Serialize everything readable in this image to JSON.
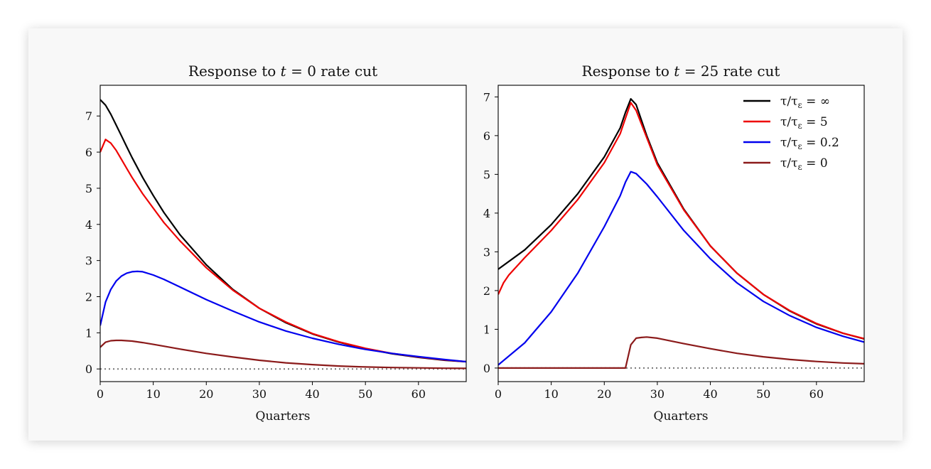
{
  "chart_data": [
    {
      "type": "line",
      "title_prefix": "Response to ",
      "title_var": "t",
      "title_suffix": " = 0 rate cut",
      "xlabel": "Quarters",
      "ylabel": "",
      "xlim": [
        0,
        69
      ],
      "ylim": [
        -0.35,
        7.85
      ],
      "xticks": [
        0,
        10,
        20,
        30,
        40,
        50,
        60
      ],
      "yticks": [
        0,
        1,
        2,
        3,
        4,
        5,
        6,
        7
      ],
      "reference_line": {
        "y": 0,
        "style": "dotted",
        "color": "#777777"
      },
      "series": [
        {
          "color": "#000000",
          "x": [
            0,
            1,
            2,
            3,
            4,
            5,
            6,
            8,
            10,
            12,
            15,
            20,
            25,
            30,
            35,
            40,
            45,
            50,
            55,
            60,
            65,
            69
          ],
          "y": [
            7.45,
            7.3,
            7.05,
            6.75,
            6.45,
            6.15,
            5.85,
            5.3,
            4.8,
            4.33,
            3.72,
            2.88,
            2.2,
            1.68,
            1.28,
            0.97,
            0.74,
            0.56,
            0.42,
            0.32,
            0.24,
            0.2
          ]
        },
        {
          "color": "#ee0000",
          "x": [
            0,
            1,
            2,
            3,
            4,
            5,
            6,
            8,
            10,
            12,
            15,
            20,
            25,
            30,
            35,
            40,
            45,
            50,
            55,
            60,
            65,
            69
          ],
          "y": [
            6.0,
            6.35,
            6.25,
            6.05,
            5.8,
            5.55,
            5.3,
            4.85,
            4.45,
            4.05,
            3.55,
            2.8,
            2.18,
            1.68,
            1.3,
            0.98,
            0.75,
            0.57,
            0.43,
            0.33,
            0.25,
            0.2
          ]
        },
        {
          "color": "#0000ee",
          "x": [
            0,
            1,
            2,
            3,
            4,
            5,
            6,
            7,
            8,
            10,
            12,
            15,
            20,
            25,
            30,
            35,
            40,
            45,
            50,
            55,
            60,
            65,
            69
          ],
          "y": [
            1.2,
            1.85,
            2.2,
            2.43,
            2.57,
            2.65,
            2.69,
            2.7,
            2.69,
            2.6,
            2.48,
            2.27,
            1.92,
            1.6,
            1.3,
            1.05,
            0.85,
            0.68,
            0.54,
            0.43,
            0.34,
            0.26,
            0.2
          ]
        },
        {
          "color": "#8b1a1a",
          "x": [
            0,
            1,
            2,
            3,
            4,
            5,
            6,
            8,
            10,
            12,
            15,
            20,
            25,
            30,
            35,
            40,
            45,
            50,
            55,
            60,
            65,
            69
          ],
          "y": [
            0.6,
            0.74,
            0.78,
            0.79,
            0.79,
            0.78,
            0.77,
            0.73,
            0.68,
            0.63,
            0.55,
            0.43,
            0.33,
            0.24,
            0.17,
            0.12,
            0.08,
            0.055,
            0.04,
            0.03,
            0.02,
            0.015
          ]
        }
      ]
    },
    {
      "type": "line",
      "title_prefix": "Response to ",
      "title_var": "t",
      "title_suffix": " = 25 rate cut",
      "xlabel": "Quarters",
      "ylabel": "",
      "xlim": [
        0,
        69
      ],
      "ylim": [
        -0.35,
        7.3
      ],
      "xticks": [
        0,
        10,
        20,
        30,
        40,
        50,
        60
      ],
      "yticks": [
        0,
        1,
        2,
        3,
        4,
        5,
        6,
        7
      ],
      "reference_line": {
        "y": 0,
        "style": "dotted",
        "color": "#777777"
      },
      "legend_position": "top-right",
      "series": [
        {
          "name": "τ/τ_ε = ∞",
          "color": "#000000",
          "x": [
            0,
            5,
            10,
            15,
            20,
            23,
            24,
            25,
            26,
            28,
            30,
            35,
            40,
            45,
            50,
            55,
            60,
            65,
            69
          ],
          "y": [
            2.55,
            3.05,
            3.7,
            4.5,
            5.45,
            6.2,
            6.6,
            6.95,
            6.8,
            6.0,
            5.3,
            4.1,
            3.15,
            2.45,
            1.9,
            1.47,
            1.14,
            0.9,
            0.75
          ]
        },
        {
          "name": "τ/τ_ε = 5",
          "color": "#ee0000",
          "x": [
            0,
            1,
            2,
            5,
            10,
            15,
            20,
            23,
            24,
            25,
            26,
            28,
            30,
            35,
            40,
            45,
            50,
            55,
            60,
            65,
            69
          ],
          "y": [
            1.9,
            2.2,
            2.4,
            2.85,
            3.55,
            4.35,
            5.3,
            6.05,
            6.45,
            6.85,
            6.65,
            5.95,
            5.25,
            4.08,
            3.15,
            2.45,
            1.9,
            1.48,
            1.15,
            0.9,
            0.76
          ]
        },
        {
          "name": "τ/τ_ε = 0.2",
          "color": "#0000ee",
          "x": [
            0,
            5,
            10,
            15,
            20,
            23,
            24,
            25,
            26,
            28,
            30,
            35,
            40,
            45,
            50,
            55,
            60,
            65,
            69
          ],
          "y": [
            0.08,
            0.65,
            1.45,
            2.45,
            3.65,
            4.45,
            4.8,
            5.07,
            5.02,
            4.75,
            4.42,
            3.55,
            2.82,
            2.2,
            1.72,
            1.35,
            1.05,
            0.82,
            0.67
          ]
        },
        {
          "name": "τ/τ_ε = 0",
          "color": "#8b1a1a",
          "x": [
            0,
            10,
            20,
            24,
            25,
            26,
            27,
            28,
            30,
            35,
            40,
            45,
            50,
            55,
            60,
            65,
            69
          ],
          "y": [
            0,
            0,
            0,
            0,
            0.6,
            0.77,
            0.79,
            0.8,
            0.77,
            0.63,
            0.5,
            0.38,
            0.29,
            0.22,
            0.17,
            0.13,
            0.11
          ]
        }
      ]
    }
  ]
}
